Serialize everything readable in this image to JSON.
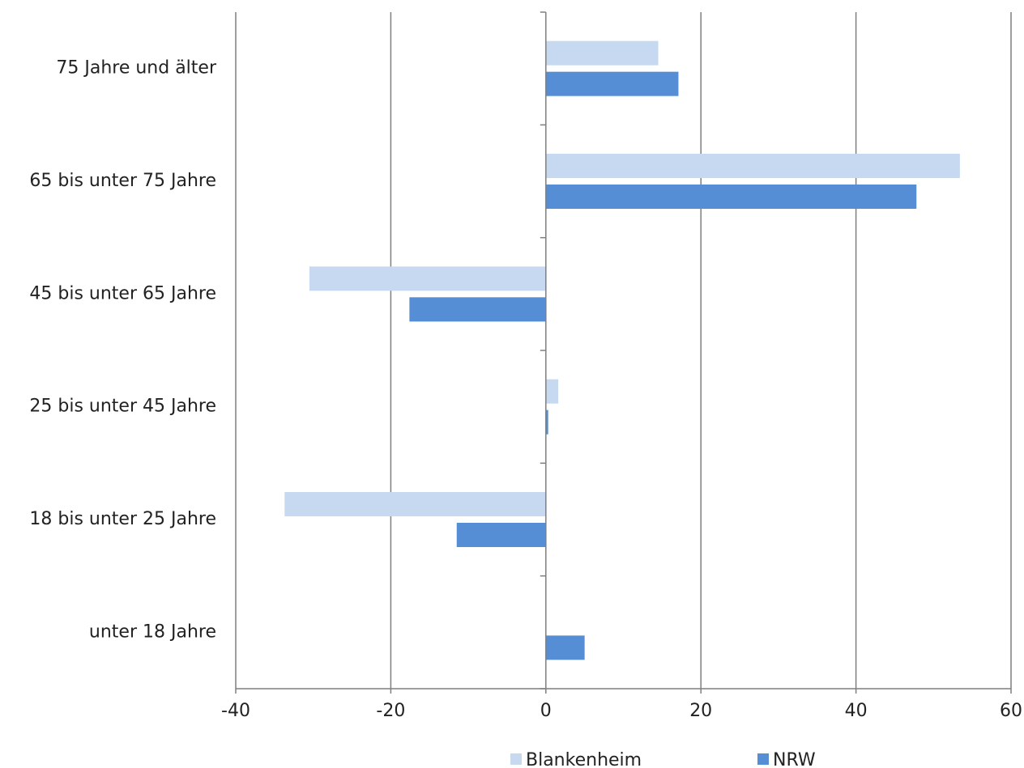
{
  "chart_data": {
    "type": "bar",
    "orientation": "horizontal",
    "categories": [
      "75 Jahre und älter",
      "65 bis unter 75 Jahre",
      "45 bis unter 65 Jahre",
      "25 bis unter 45 Jahre",
      "18 bis unter 25 Jahre",
      "unter 18 Jahre"
    ],
    "series": [
      {
        "name": "Blankenheim",
        "color": "#c6d9f1",
        "values": [
          14.5,
          53.4,
          -30.5,
          1.6,
          -33.7,
          0.0
        ]
      },
      {
        "name": "NRW",
        "color": "#558ed5",
        "values": [
          17.1,
          47.8,
          -17.6,
          0.3,
          -11.5,
          5.0
        ]
      }
    ],
    "xlim": [
      -40,
      60
    ],
    "xticks": [
      -40,
      -20,
      0,
      20,
      40,
      60
    ],
    "xtick_labels": [
      "-40",
      "-20",
      "0",
      "20",
      "40",
      "60"
    ],
    "grid": true,
    "legend_position": "bottom",
    "title": "",
    "xlabel": "",
    "ylabel": ""
  }
}
